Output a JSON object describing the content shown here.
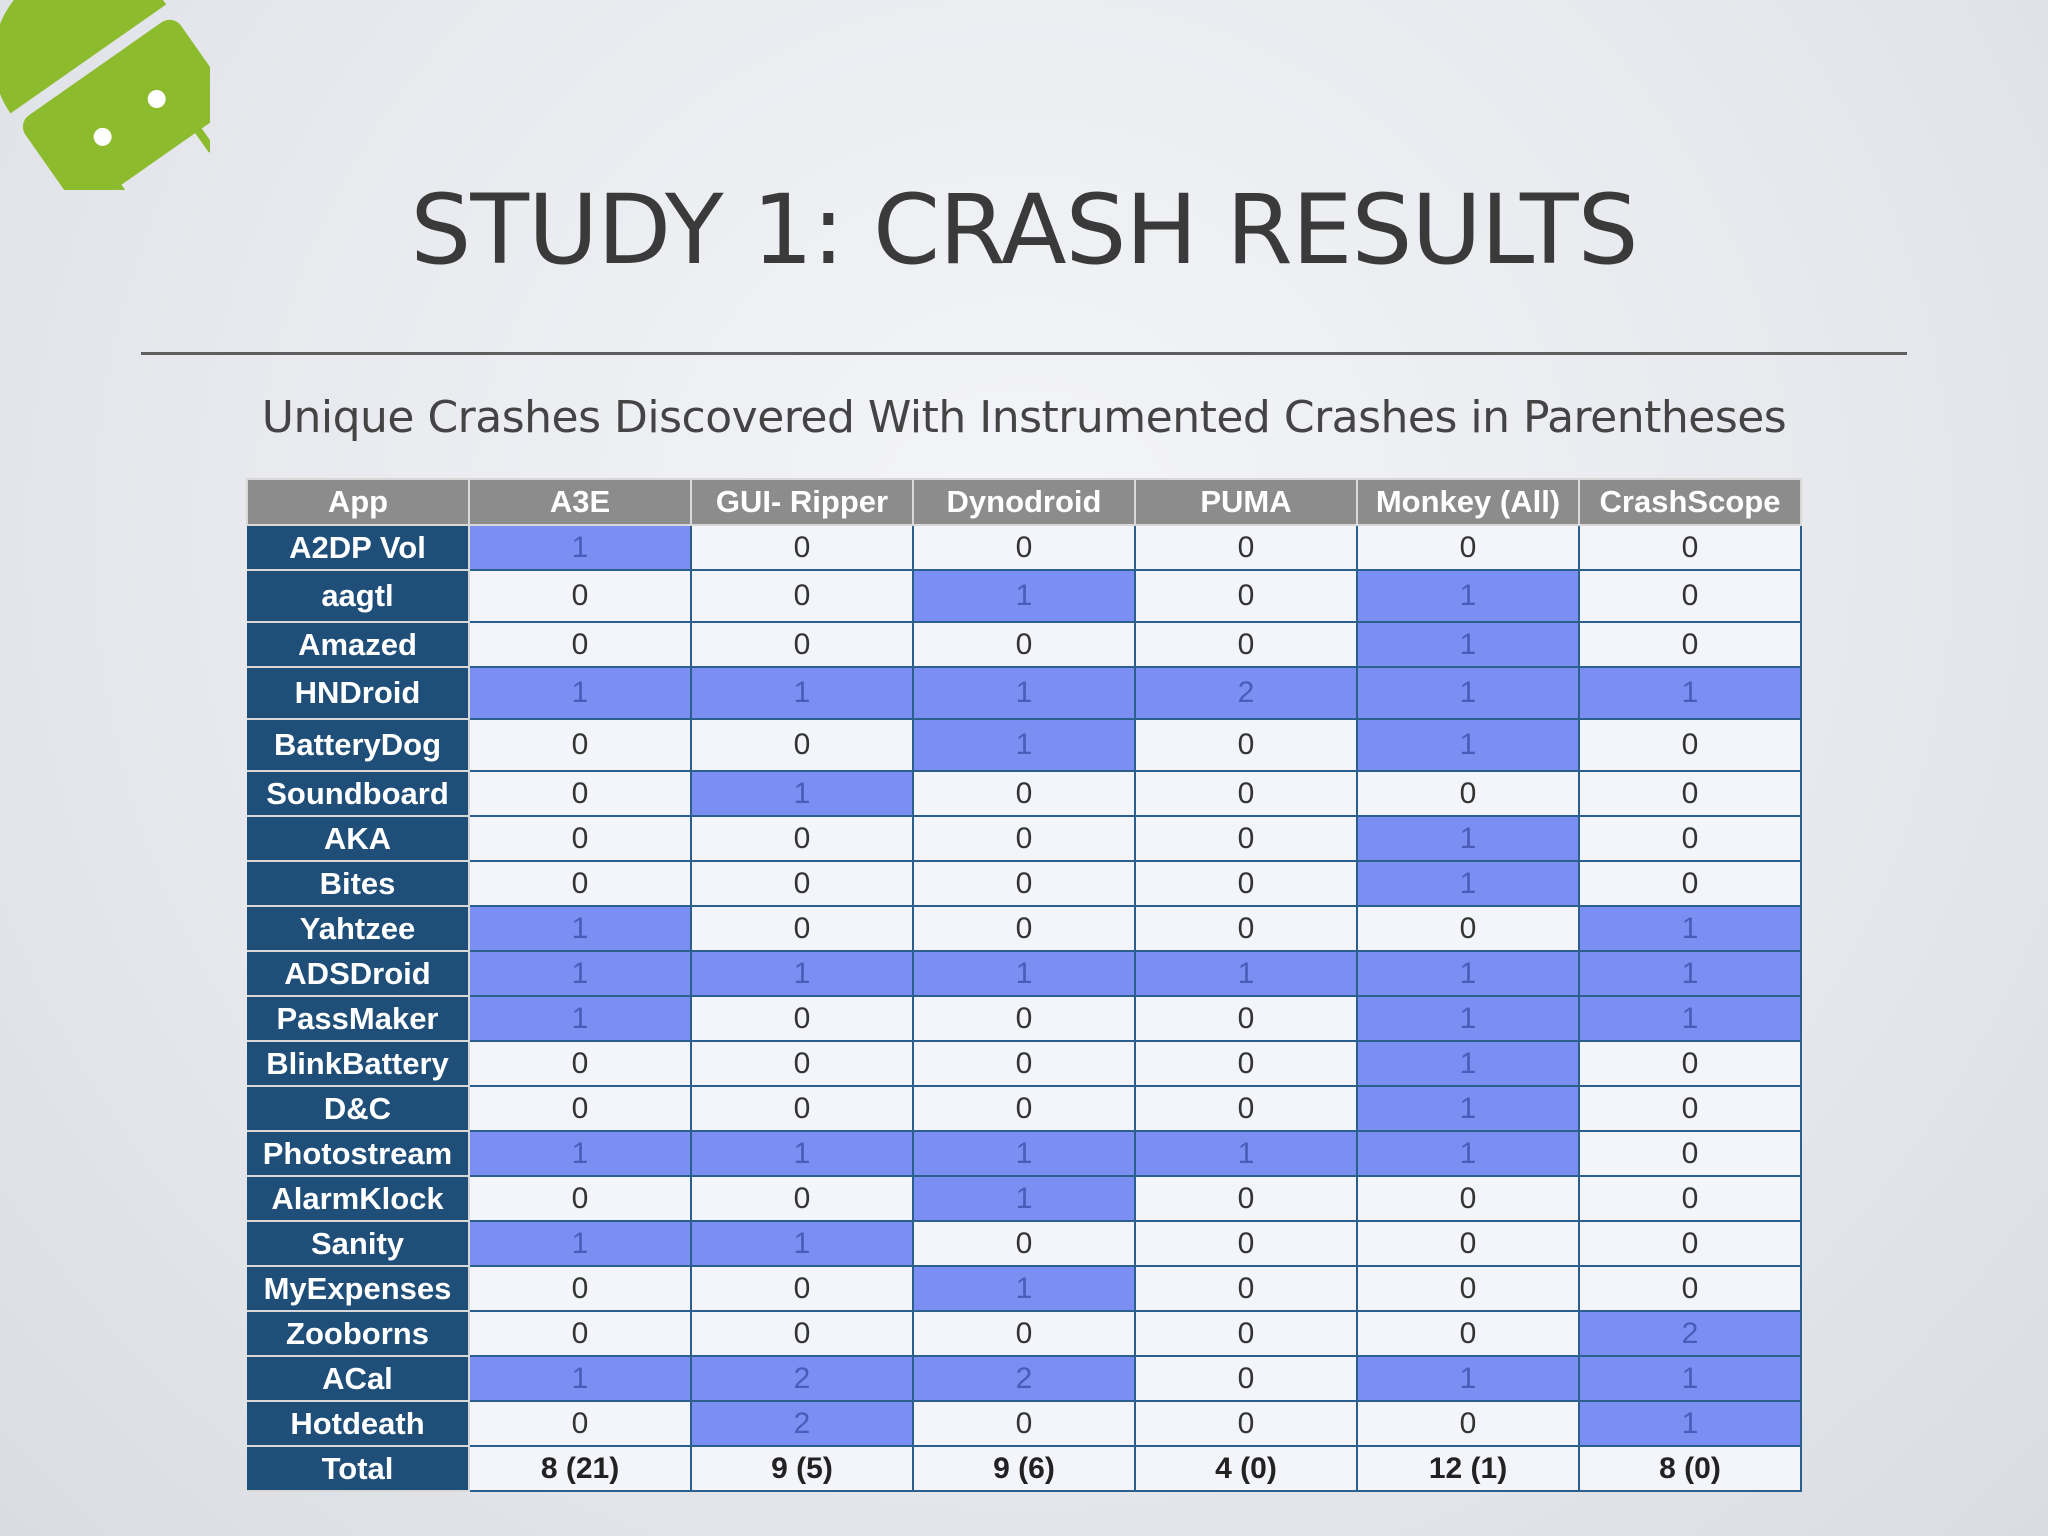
{
  "slide": {
    "title": "STUDY 1: CRASH RESULTS",
    "subtitle": "Unique Crashes Discovered With Instrumented Crashes in Parentheses",
    "logo_icon": "android-robot-icon",
    "logo_color": "#8cbb2e"
  },
  "colors": {
    "header_bg": "#8c8c8c",
    "app_col_bg": "#1f4e79",
    "highlight_bg": "#7b8ff2",
    "cell_bg": "#f3f5fb"
  },
  "table": {
    "headers": [
      "App",
      "A3E",
      "GUI- Ripper",
      "Dynodroid",
      "PUMA",
      "Monkey (All)",
      "CrashScope"
    ],
    "rows": [
      {
        "app": "A2DP Vol",
        "values": [
          "1",
          "0",
          "0",
          "0",
          "0",
          "0"
        ]
      },
      {
        "app": "aagtl",
        "values": [
          "0",
          "0",
          "1",
          "0",
          "1",
          "0"
        ]
      },
      {
        "app": "Amazed",
        "values": [
          "0",
          "0",
          "0",
          "0",
          "1",
          "0"
        ]
      },
      {
        "app": "HNDroid",
        "values": [
          "1",
          "1",
          "1",
          "2",
          "1",
          "1"
        ]
      },
      {
        "app": "BatteryDog",
        "values": [
          "0",
          "0",
          "1",
          "0",
          "1",
          "0"
        ]
      },
      {
        "app": "Soundboard",
        "values": [
          "0",
          "1",
          "0",
          "0",
          "0",
          "0"
        ]
      },
      {
        "app": "AKA",
        "values": [
          "0",
          "0",
          "0",
          "0",
          "1",
          "0"
        ]
      },
      {
        "app": "Bites",
        "values": [
          "0",
          "0",
          "0",
          "0",
          "1",
          "0"
        ]
      },
      {
        "app": "Yahtzee",
        "values": [
          "1",
          "0",
          "0",
          "0",
          "0",
          "1"
        ]
      },
      {
        "app": "ADSDroid",
        "values": [
          "1",
          "1",
          "1",
          "1",
          "1",
          "1"
        ]
      },
      {
        "app": "PassMaker",
        "values": [
          "1",
          "0",
          "0",
          "0",
          "1",
          "1"
        ]
      },
      {
        "app": "BlinkBattery",
        "values": [
          "0",
          "0",
          "0",
          "0",
          "1",
          "0"
        ]
      },
      {
        "app": "D&C",
        "values": [
          "0",
          "0",
          "0",
          "0",
          "1",
          "0"
        ]
      },
      {
        "app": "Photostream",
        "values": [
          "1",
          "1",
          "1",
          "1",
          "1",
          "0"
        ]
      },
      {
        "app": "AlarmKlock",
        "values": [
          "0",
          "0",
          "1",
          "0",
          "0",
          "0"
        ]
      },
      {
        "app": "Sanity",
        "values": [
          "1",
          "1",
          "0",
          "0",
          "0",
          "0"
        ]
      },
      {
        "app": "MyExpenses",
        "values": [
          "0",
          "0",
          "1",
          "0",
          "0",
          "0"
        ]
      },
      {
        "app": "Zooborns",
        "values": [
          "0",
          "0",
          "0",
          "0",
          "0",
          "2"
        ]
      },
      {
        "app": "ACal",
        "values": [
          "1",
          "2",
          "2",
          "0",
          "1",
          "1"
        ]
      },
      {
        "app": "Hotdeath",
        "values": [
          "0",
          "2",
          "0",
          "0",
          "0",
          "1"
        ]
      }
    ],
    "total": {
      "label": "Total",
      "values": [
        "8 (21)",
        "9 (5)",
        "9 (6)",
        "4 (0)",
        "12 (1)",
        "8 (0)"
      ]
    }
  }
}
